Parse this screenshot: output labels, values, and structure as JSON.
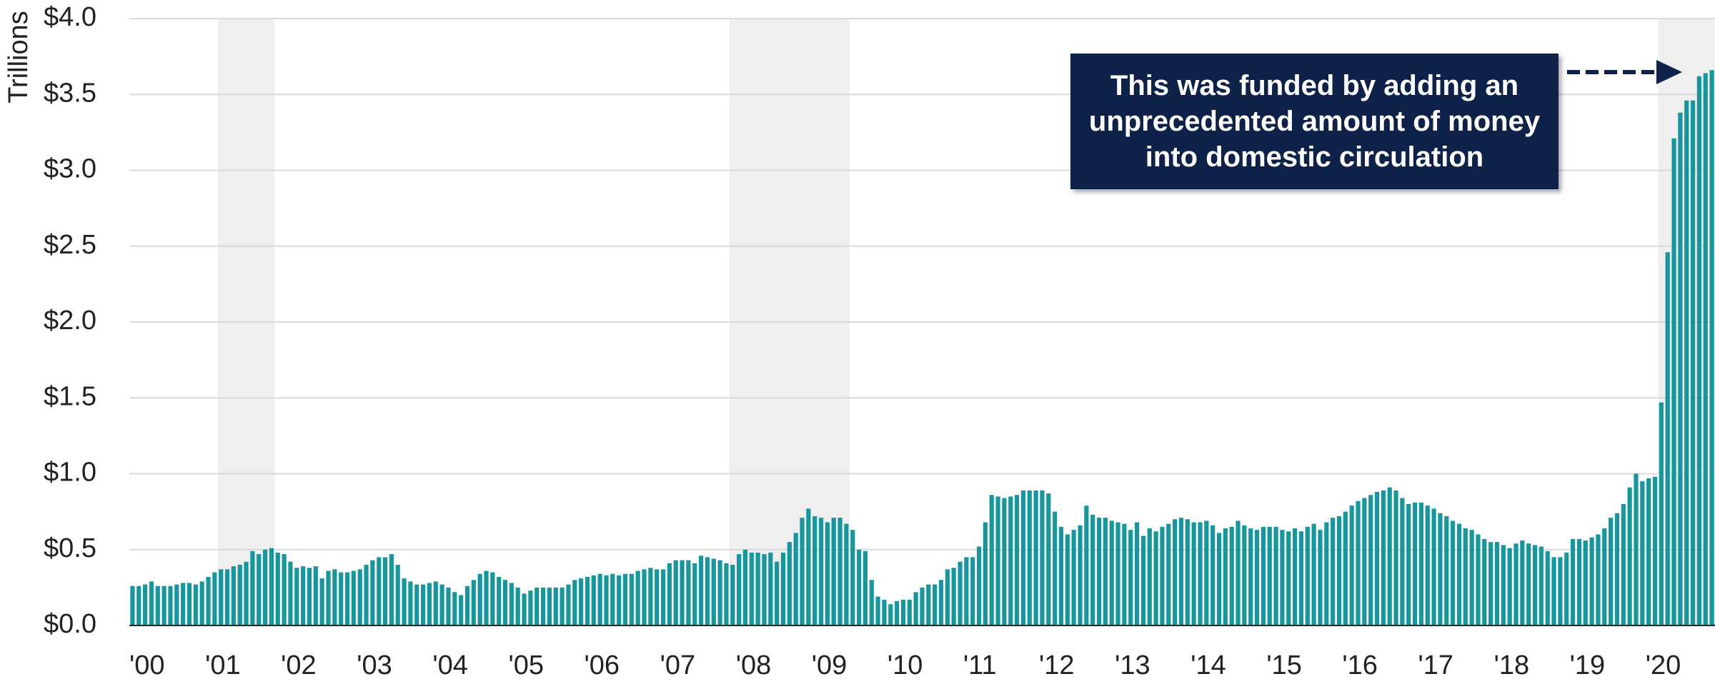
{
  "chart_data": {
    "type": "bar",
    "y_label": "Trillions",
    "annotation": "This was funded by adding an unprecedented amount of money into domestic circulation",
    "color": "#17979d",
    "shade_color": "#efefef",
    "annotation_color": "#0d2149",
    "grid": true,
    "ylim": [
      0,
      4
    ],
    "yticks": [
      {
        "value": 0,
        "label": "$0.0"
      },
      {
        "value": 0.5,
        "label": "$0.5"
      },
      {
        "value": 1,
        "label": "$1.0"
      },
      {
        "value": 1.5,
        "label": "$1.5"
      },
      {
        "value": 2,
        "label": "$2.0"
      },
      {
        "value": 2.5,
        "label": "$2.5"
      },
      {
        "value": 3,
        "label": "$3.0"
      },
      {
        "value": 3.5,
        "label": "$3.5"
      },
      {
        "value": 4,
        "label": "$4.0"
      }
    ],
    "shaded_periods": [
      [
        14,
        23
      ],
      [
        95,
        114
      ],
      [
        242,
        251
      ]
    ],
    "categories": [
      "'00",
      null,
      null,
      null,
      null,
      null,
      null,
      null,
      null,
      null,
      null,
      null,
      "'01",
      null,
      null,
      null,
      null,
      null,
      null,
      null,
      null,
      null,
      null,
      null,
      "'02",
      null,
      null,
      null,
      null,
      null,
      null,
      null,
      null,
      null,
      null,
      null,
      "'03",
      null,
      null,
      null,
      null,
      null,
      null,
      null,
      null,
      null,
      null,
      null,
      "'04",
      null,
      null,
      null,
      null,
      null,
      null,
      null,
      null,
      null,
      null,
      null,
      "'05",
      null,
      null,
      null,
      null,
      null,
      null,
      null,
      null,
      null,
      null,
      null,
      "'06",
      null,
      null,
      null,
      null,
      null,
      null,
      null,
      null,
      null,
      null,
      null,
      "'07",
      null,
      null,
      null,
      null,
      null,
      null,
      null,
      null,
      null,
      null,
      null,
      "'08",
      null,
      null,
      null,
      null,
      null,
      null,
      null,
      null,
      null,
      null,
      null,
      "'09",
      null,
      null,
      null,
      null,
      null,
      null,
      null,
      null,
      null,
      null,
      null,
      "'10",
      null,
      null,
      null,
      null,
      null,
      null,
      null,
      null,
      null,
      null,
      null,
      "'11",
      null,
      null,
      null,
      null,
      null,
      null,
      null,
      null,
      null,
      null,
      null,
      "'12",
      null,
      null,
      null,
      null,
      null,
      null,
      null,
      null,
      null,
      null,
      null,
      "'13",
      null,
      null,
      null,
      null,
      null,
      null,
      null,
      null,
      null,
      null,
      null,
      "'14",
      null,
      null,
      null,
      null,
      null,
      null,
      null,
      null,
      null,
      null,
      null,
      "'15",
      null,
      null,
      null,
      null,
      null,
      null,
      null,
      null,
      null,
      null,
      null,
      "'16",
      null,
      null,
      null,
      null,
      null,
      null,
      null,
      null,
      null,
      null,
      null,
      "'17",
      null,
      null,
      null,
      null,
      null,
      null,
      null,
      null,
      null,
      null,
      null,
      "'18",
      null,
      null,
      null,
      null,
      null,
      null,
      null,
      null,
      null,
      null,
      null,
      "'19",
      null,
      null,
      null,
      null,
      null,
      null,
      null,
      null,
      null,
      null,
      null,
      "'20",
      null,
      null,
      null,
      null,
      null,
      null,
      null,
      null,
      null,
      null
    ],
    "values": [
      0.26,
      0.26,
      0.27,
      0.29,
      0.26,
      0.26,
      0.26,
      0.27,
      0.28,
      0.28,
      0.27,
      0.29,
      0.32,
      0.35,
      0.37,
      0.37,
      0.39,
      0.4,
      0.42,
      0.49,
      0.47,
      0.5,
      0.51,
      0.48,
      0.47,
      0.42,
      0.38,
      0.39,
      0.38,
      0.39,
      0.31,
      0.36,
      0.37,
      0.35,
      0.35,
      0.36,
      0.37,
      0.4,
      0.43,
      0.45,
      0.45,
      0.47,
      0.4,
      0.31,
      0.29,
      0.27,
      0.27,
      0.28,
      0.29,
      0.27,
      0.25,
      0.22,
      0.2,
      0.26,
      0.3,
      0.34,
      0.36,
      0.35,
      0.32,
      0.3,
      0.28,
      0.25,
      0.21,
      0.23,
      0.25,
      0.25,
      0.25,
      0.25,
      0.25,
      0.27,
      0.3,
      0.31,
      0.32,
      0.33,
      0.34,
      0.33,
      0.34,
      0.33,
      0.34,
      0.34,
      0.36,
      0.37,
      0.38,
      0.37,
      0.37,
      0.41,
      0.43,
      0.43,
      0.43,
      0.41,
      0.46,
      0.45,
      0.44,
      0.43,
      0.41,
      0.4,
      0.47,
      0.5,
      0.48,
      0.48,
      0.47,
      0.48,
      0.42,
      0.48,
      0.55,
      0.61,
      0.71,
      0.77,
      0.72,
      0.71,
      0.68,
      0.71,
      0.71,
      0.67,
      0.63,
      0.5,
      0.49,
      0.3,
      0.19,
      0.17,
      0.14,
      0.16,
      0.17,
      0.17,
      0.22,
      0.25,
      0.27,
      0.27,
      0.3,
      0.37,
      0.38,
      0.42,
      0.45,
      0.45,
      0.52,
      0.68,
      0.86,
      0.85,
      0.84,
      0.85,
      0.86,
      0.89,
      0.89,
      0.89,
      0.89,
      0.87,
      0.75,
      0.65,
      0.6,
      0.63,
      0.66,
      0.79,
      0.73,
      0.71,
      0.71,
      0.69,
      0.68,
      0.67,
      0.63,
      0.68,
      0.59,
      0.64,
      0.62,
      0.65,
      0.67,
      0.7,
      0.71,
      0.7,
      0.68,
      0.68,
      0.69,
      0.66,
      0.61,
      0.64,
      0.65,
      0.69,
      0.66,
      0.64,
      0.63,
      0.65,
      0.65,
      0.65,
      0.63,
      0.62,
      0.64,
      0.62,
      0.65,
      0.67,
      0.63,
      0.68,
      0.71,
      0.72,
      0.75,
      0.79,
      0.82,
      0.84,
      0.86,
      0.88,
      0.89,
      0.91,
      0.89,
      0.84,
      0.8,
      0.81,
      0.81,
      0.79,
      0.77,
      0.74,
      0.72,
      0.69,
      0.67,
      0.64,
      0.63,
      0.6,
      0.57,
      0.55,
      0.55,
      0.53,
      0.51,
      0.54,
      0.56,
      0.54,
      0.53,
      0.52,
      0.49,
      0.45,
      0.45,
      0.48,
      0.57,
      0.57,
      0.56,
      0.58,
      0.6,
      0.64,
      0.71,
      0.74,
      0.8,
      0.91,
      1.0,
      0.95,
      0.97,
      0.98,
      1.47,
      2.46,
      3.21,
      3.38,
      3.46,
      3.46,
      3.62,
      3.64,
      3.66
    ]
  }
}
